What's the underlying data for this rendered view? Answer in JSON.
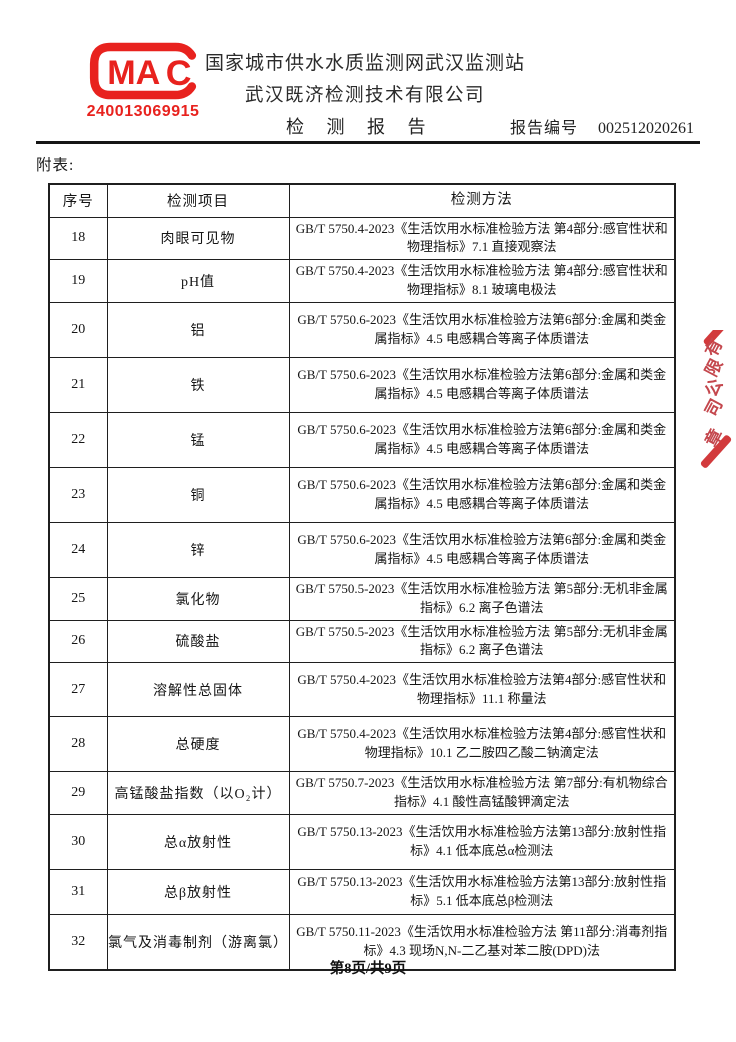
{
  "header": {
    "cma_mark": "MA",
    "cma_c": "C",
    "cert_no": "240013069915",
    "org_line1": "国家城市供水水质监测网武汉监测站",
    "org_line2": "武汉既济检测技术有限公司",
    "report_title": "检 测 报 告",
    "report_no_label": "报告编号",
    "report_no": "002512020261"
  },
  "appendix_label": "附表:",
  "table": {
    "columns": [
      "序号",
      "检测项目",
      "检测方法"
    ],
    "rows": [
      {
        "no": "18",
        "item": "肉眼可见物",
        "method": "GB/T 5750.4-2023《生活饮用水标准检验方法 第4部分:感官性状和物理指标》7.1 直接观察法"
      },
      {
        "no": "19",
        "item": "pH值",
        "method": "GB/T 5750.4-2023《生活饮用水标准检验方法 第4部分:感官性状和物理指标》8.1 玻璃电极法"
      },
      {
        "no": "20",
        "item": "铝",
        "method": "GB/T 5750.6-2023《生活饮用水标准检验方法第6部分:金属和类金属指标》4.5 电感耦合等离子体质谱法"
      },
      {
        "no": "21",
        "item": "铁",
        "method": "GB/T 5750.6-2023《生活饮用水标准检验方法第6部分:金属和类金属指标》4.5 电感耦合等离子体质谱法"
      },
      {
        "no": "22",
        "item": "锰",
        "method": "GB/T 5750.6-2023《生活饮用水标准检验方法第6部分:金属和类金属指标》4.5 电感耦合等离子体质谱法"
      },
      {
        "no": "23",
        "item": "铜",
        "method": "GB/T 5750.6-2023《生活饮用水标准检验方法第6部分:金属和类金属指标》4.5 电感耦合等离子体质谱法"
      },
      {
        "no": "24",
        "item": "锌",
        "method": "GB/T 5750.6-2023《生活饮用水标准检验方法第6部分:金属和类金属指标》4.5 电感耦合等离子体质谱法"
      },
      {
        "no": "25",
        "item": "氯化物",
        "method": "GB/T 5750.5-2023《生活饮用水标准检验方法 第5部分:无机非金属指标》6.2 离子色谱法"
      },
      {
        "no": "26",
        "item": "硫酸盐",
        "method": "GB/T 5750.5-2023《生活饮用水标准检验方法 第5部分:无机非金属指标》6.2 离子色谱法"
      },
      {
        "no": "27",
        "item": "溶解性总固体",
        "method": "GB/T 5750.4-2023《生活饮用水标准检验方法第4部分:感官性状和物理指标》11.1 称量法"
      },
      {
        "no": "28",
        "item": "总硬度",
        "method": "GB/T 5750.4-2023《生活饮用水标准检验方法第4部分:感官性状和物理指标》10.1 乙二胺四乙酸二钠滴定法"
      },
      {
        "no": "29",
        "item": "高锰酸盐指数（以O₂计）",
        "method": "GB/T 5750.7-2023《生活饮用水标准检验方法 第7部分:有机物综合指标》4.1 酸性高锰酸钾滴定法"
      },
      {
        "no": "30",
        "item": "总α放射性",
        "method": "GB/T 5750.13-2023《生活饮用水标准检验方法第13部分:放射性指标》4.1 低本底总α检测法"
      },
      {
        "no": "31",
        "item": "总β放射性",
        "method": "GB/T 5750.13-2023《生活饮用水标准检验方法第13部分:放射性指标》5.1 低本底总β检测法"
      },
      {
        "no": "32",
        "item": "氯气及消毒制剂（游离氯）",
        "method": "GB/T 5750.11-2023《生活饮用水标准检验方法 第11部分:消毒剂指标》4.3 现场N,N-二乙基对苯二胺(DPD)法"
      }
    ]
  },
  "stamp": {
    "chars": "有限公司",
    "last_char": "章",
    "color": "#c4474d"
  },
  "footer": {
    "page_info": "第8页/共9页"
  },
  "colors": {
    "cma_red": "#e8221e",
    "stamp_red": "#d23a3c"
  }
}
